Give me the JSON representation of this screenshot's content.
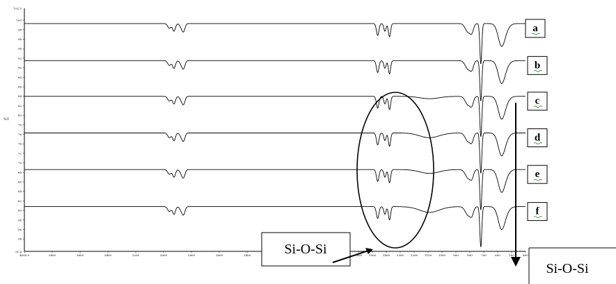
{
  "chart_data": {
    "type": "line",
    "title": "",
    "xlabel": "",
    "ylabel": "%T",
    "x_range": [
      4000,
      400
    ],
    "y_range": [
      51.4,
      102.5
    ],
    "y_ticks": [
      100,
      98,
      96,
      94,
      92,
      90,
      88,
      86,
      84,
      82,
      80,
      78,
      76,
      74,
      72,
      70,
      68,
      66,
      64,
      62,
      60,
      58,
      56,
      54
    ],
    "y_top_label": "102.5",
    "y_bottom_label": "51.4",
    "x_ticks": [
      4000,
      3800,
      3600,
      3400,
      3200,
      3000,
      2800,
      2600,
      2400,
      2200,
      2000,
      1900,
      1800,
      1700,
      1600,
      1500,
      1400,
      1300,
      1200,
      1100,
      1000,
      900,
      800,
      700,
      600,
      500,
      400
    ],
    "x_tick_labels": [
      "4000.0",
      "3800",
      "3600",
      "3400",
      "3200",
      "3000",
      "2800",
      "2600",
      "2400",
      "2200",
      "2000",
      "1900",
      "1800",
      "1700",
      "1600",
      "1500",
      "1400",
      "1300",
      "1200",
      "1100",
      "1000",
      "900",
      "800",
      "700",
      "600",
      "500",
      "400"
    ],
    "series": [
      {
        "name": "a",
        "baseline": 99.3,
        "siosi_depth": 0.0
      },
      {
        "name": "b",
        "baseline": 91.5,
        "siosi_depth": 0.0
      },
      {
        "name": "c",
        "baseline": 84.0,
        "siosi_depth": 0.5
      },
      {
        "name": "d",
        "baseline": 76.3,
        "siosi_depth": 1.0
      },
      {
        "name": "e",
        "baseline": 68.6,
        "siosi_depth": 0.8
      },
      {
        "name": "f",
        "baseline": 60.8,
        "siosi_depth": 1.2
      }
    ],
    "annotations": {
      "ellipse_label": "Si-O-Si",
      "corner_label": "Si-O-Si"
    }
  }
}
